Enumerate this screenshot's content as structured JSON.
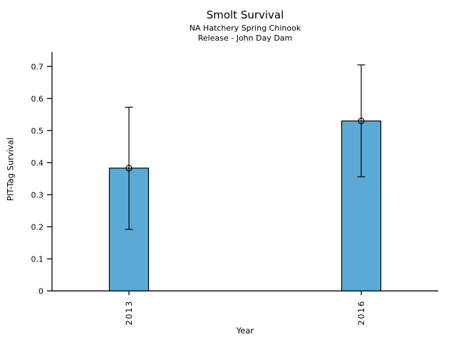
{
  "chart_data": {
    "type": "bar",
    "title": "Smolt Survival",
    "subtitle_line1": "NA Hatchery Spring Chinook",
    "subtitle_line2": "Release - John Day Dam",
    "xlabel": "Year",
    "ylabel": "PIT-Tag Survival",
    "categories": [
      "2013",
      "2016"
    ],
    "values": [
      0.383,
      0.53
    ],
    "error_bars": [
      {
        "lower": 0.192,
        "upper": 0.573
      },
      {
        "lower": 0.356,
        "upper": 0.705
      }
    ],
    "yticks": [
      0,
      0.1,
      0.2,
      0.3,
      0.4,
      0.5,
      0.6,
      0.7
    ],
    "ytick_labels": [
      "0",
      "0.1",
      "0.2",
      "0.3",
      "0.4",
      "0.5",
      "0.6",
      "0.7"
    ],
    "ylim": [
      0,
      0.745
    ],
    "grid": false,
    "legend": null,
    "marker": "open-circle",
    "bar_color": "#5AAAD5",
    "bar_edge_color": "#000000",
    "axis_color": "#000000",
    "background_color": "#ffffff"
  }
}
